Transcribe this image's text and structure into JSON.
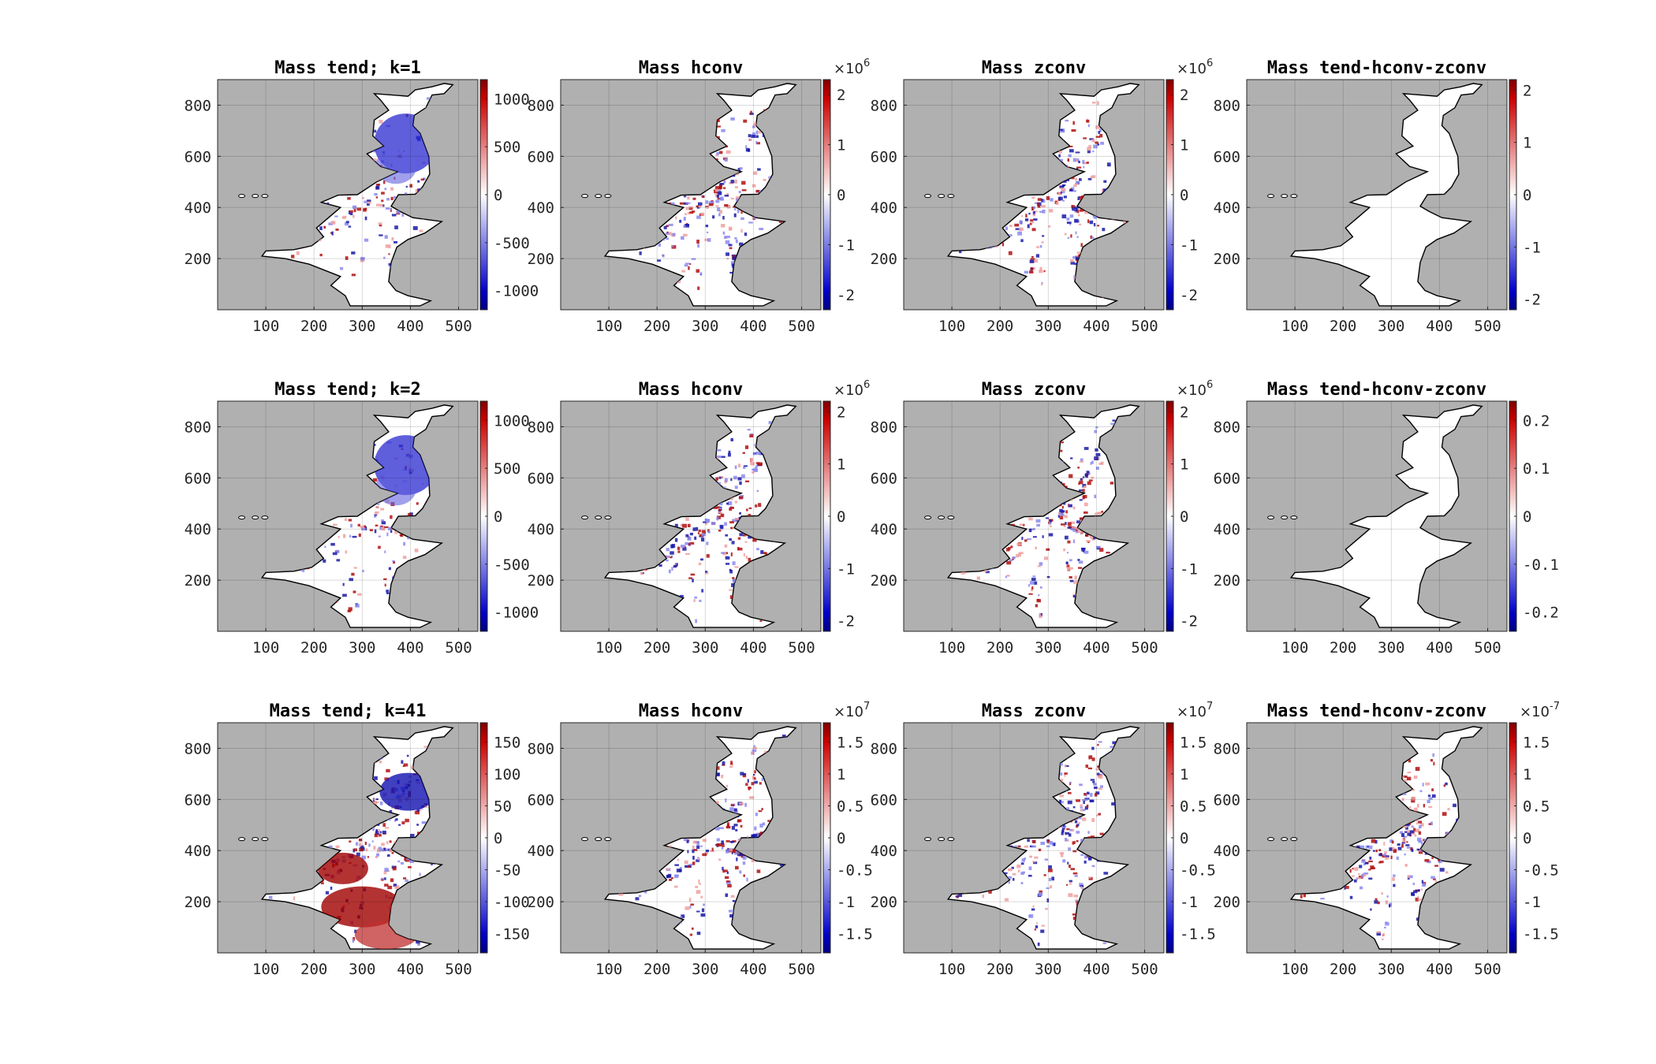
{
  "chart_data": {
    "type": "heatmap",
    "x_ticks": [
      100,
      200,
      300,
      400,
      500
    ],
    "y_ticks": [
      200,
      400,
      600,
      800
    ],
    "xlim": [
      0,
      540
    ],
    "ylim": [
      0,
      900
    ],
    "grid": true,
    "colormap": {
      "low": "#000080",
      "mid": "#ffffff",
      "high": "#800000"
    },
    "land_color": "#b0b0b0",
    "ocean_color": "#ffffff",
    "panels": [
      {
        "title": "Mass tend; k=1",
        "clim": [
          -1200,
          1200
        ],
        "cbar_ticks": [
          -1000,
          -500,
          0,
          500,
          1000
        ],
        "cbar_labels": [
          "-1000",
          "-500",
          "0",
          "500",
          "1000"
        ],
        "exponent": ""
      },
      {
        "title": "Mass hconv",
        "clim": [
          -2.3,
          2.3
        ],
        "cbar_ticks": [
          -2,
          -1,
          0,
          1,
          2
        ],
        "cbar_labels": [
          "-2",
          "-1",
          "0",
          "1",
          "2"
        ],
        "exponent": "6"
      },
      {
        "title": "Mass zconv",
        "clim": [
          -2.3,
          2.3
        ],
        "cbar_ticks": [
          -2,
          -1,
          0,
          1,
          2
        ],
        "cbar_labels": [
          "-2",
          "-1",
          "0",
          "1",
          "2"
        ],
        "exponent": "6"
      },
      {
        "title": "Mass tend-hconv-zconv",
        "clim": [
          -2.2,
          2.2
        ],
        "cbar_ticks": [
          -2,
          -1,
          0,
          1,
          2
        ],
        "cbar_labels": [
          "-2",
          "-1",
          "0",
          "1",
          "2"
        ],
        "exponent": ""
      },
      {
        "title": "Mass tend; k=2",
        "clim": [
          -1200,
          1200
        ],
        "cbar_ticks": [
          -1000,
          -500,
          0,
          500,
          1000
        ],
        "cbar_labels": [
          "-1000",
          "-500",
          "0",
          "500",
          "1000"
        ],
        "exponent": ""
      },
      {
        "title": "Mass hconv",
        "clim": [
          -2.2,
          2.2
        ],
        "cbar_ticks": [
          -2,
          -1,
          0,
          1,
          2
        ],
        "cbar_labels": [
          "-2",
          "-1",
          "0",
          "1",
          "2"
        ],
        "exponent": "6"
      },
      {
        "title": "Mass zconv",
        "clim": [
          -2.2,
          2.2
        ],
        "cbar_ticks": [
          -2,
          -1,
          0,
          1,
          2
        ],
        "cbar_labels": [
          "-2",
          "-1",
          "0",
          "1",
          "2"
        ],
        "exponent": "6"
      },
      {
        "title": "Mass tend-hconv-zconv",
        "clim": [
          -0.24,
          0.24
        ],
        "cbar_ticks": [
          -0.2,
          -0.1,
          0,
          0.1,
          0.2
        ],
        "cbar_labels": [
          "-0.2",
          "-0.1",
          "0",
          "0.1",
          "0.2"
        ],
        "exponent": ""
      },
      {
        "title": "Mass tend; k=41",
        "clim": [
          -180,
          180
        ],
        "cbar_ticks": [
          -150,
          -100,
          -50,
          0,
          50,
          100,
          150
        ],
        "cbar_labels": [
          "-150",
          "-100",
          "-50",
          "0",
          "50",
          "100",
          "150"
        ],
        "exponent": ""
      },
      {
        "title": "Mass hconv",
        "clim": [
          -1.8,
          1.8
        ],
        "cbar_ticks": [
          -1.5,
          -1,
          -0.5,
          0,
          0.5,
          1,
          1.5
        ],
        "cbar_labels": [
          "-1.5",
          "-1",
          "-0.5",
          "0",
          "0.5",
          "1",
          "1.5"
        ],
        "exponent": "7"
      },
      {
        "title": "Mass zconv",
        "clim": [
          -1.8,
          1.8
        ],
        "cbar_ticks": [
          -1.5,
          -1,
          -0.5,
          0,
          0.5,
          1,
          1.5
        ],
        "cbar_labels": [
          "-1.5",
          "-1",
          "-0.5",
          "0",
          "0.5",
          "1",
          "1.5"
        ],
        "exponent": "7"
      },
      {
        "title": "Mass tend-hconv-zconv",
        "clim": [
          -1.8,
          1.8
        ],
        "cbar_ticks": [
          -1.5,
          -1,
          -0.5,
          0,
          0.5,
          1,
          1.5
        ],
        "cbar_labels": [
          "-1.5",
          "-1",
          "-0.5",
          "0",
          "0.5",
          "1",
          "1.5"
        ],
        "exponent": "-7"
      }
    ]
  }
}
